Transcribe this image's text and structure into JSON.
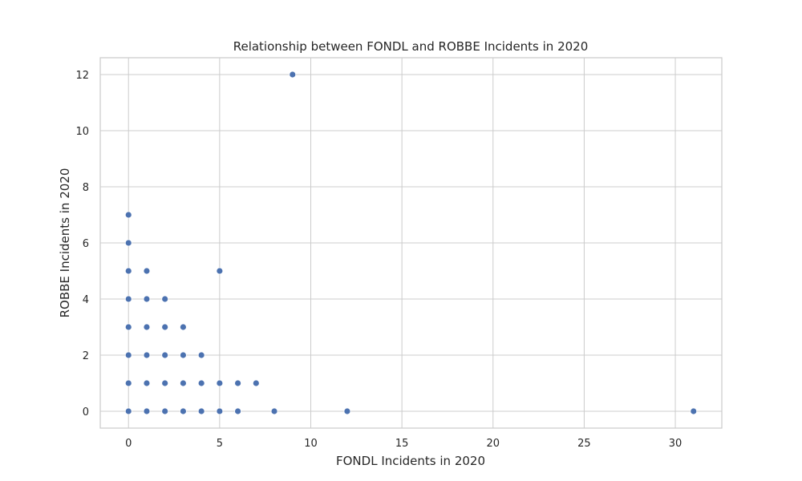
{
  "chart_data": {
    "type": "scatter",
    "title": "Relationship between FONDL and ROBBE Incidents in 2020",
    "xlabel": "FONDL Incidents in 2020",
    "ylabel": "ROBBE Incidents in 2020",
    "xlim": [
      -1.55,
      32.55
    ],
    "ylim": [
      -0.6,
      12.6
    ],
    "xticks": [
      0,
      5,
      10,
      15,
      20,
      25,
      30
    ],
    "yticks": [
      0,
      2,
      4,
      6,
      8,
      10,
      12
    ],
    "grid": true,
    "point_color": "#4c72b0",
    "grid_color": "#cccccc",
    "points": [
      {
        "x": 0,
        "y": 0
      },
      {
        "x": 0,
        "y": 1
      },
      {
        "x": 0,
        "y": 2
      },
      {
        "x": 0,
        "y": 3
      },
      {
        "x": 0,
        "y": 4
      },
      {
        "x": 0,
        "y": 5
      },
      {
        "x": 0,
        "y": 6
      },
      {
        "x": 0,
        "y": 7
      },
      {
        "x": 1,
        "y": 0
      },
      {
        "x": 1,
        "y": 1
      },
      {
        "x": 1,
        "y": 2
      },
      {
        "x": 1,
        "y": 3
      },
      {
        "x": 1,
        "y": 4
      },
      {
        "x": 1,
        "y": 5
      },
      {
        "x": 2,
        "y": 0
      },
      {
        "x": 2,
        "y": 1
      },
      {
        "x": 2,
        "y": 2
      },
      {
        "x": 2,
        "y": 3
      },
      {
        "x": 2,
        "y": 4
      },
      {
        "x": 3,
        "y": 0
      },
      {
        "x": 3,
        "y": 1
      },
      {
        "x": 3,
        "y": 2
      },
      {
        "x": 3,
        "y": 3
      },
      {
        "x": 4,
        "y": 0
      },
      {
        "x": 4,
        "y": 1
      },
      {
        "x": 4,
        "y": 2
      },
      {
        "x": 5,
        "y": 0
      },
      {
        "x": 5,
        "y": 1
      },
      {
        "x": 5,
        "y": 5
      },
      {
        "x": 6,
        "y": 0
      },
      {
        "x": 6,
        "y": 1
      },
      {
        "x": 7,
        "y": 1
      },
      {
        "x": 8,
        "y": 0
      },
      {
        "x": 9,
        "y": 12
      },
      {
        "x": 12,
        "y": 0
      },
      {
        "x": 31,
        "y": 0
      }
    ]
  }
}
